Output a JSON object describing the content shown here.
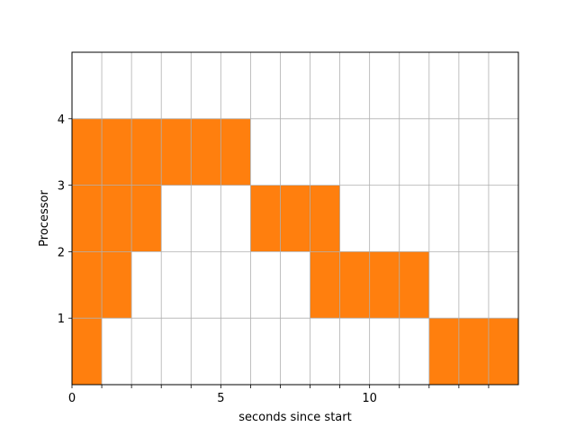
{
  "chart_data": {
    "type": "heatmap",
    "xlabel": "seconds since start",
    "ylabel": "Processor",
    "xlim": [
      0,
      15
    ],
    "ylim": [
      0,
      5
    ],
    "x_ticks": [
      0,
      1,
      2,
      3,
      4,
      5,
      6,
      7,
      8,
      9,
      10,
      11,
      12,
      13,
      14
    ],
    "x_tick_labels": [
      "0",
      "",
      "",
      "",
      "",
      "5",
      "",
      "",
      "",
      "",
      "10",
      "",
      "",
      "",
      ""
    ],
    "y_ticks": [
      1,
      2,
      3,
      4
    ],
    "y_tick_labels": [
      "1",
      "2",
      "3",
      "4"
    ],
    "grid": true,
    "fill_color": "#ff7f0e",
    "grid_color": "#b0b0b0",
    "cells": [
      {
        "x": 0,
        "y": 1
      },
      {
        "x": 0,
        "y": 2
      },
      {
        "x": 1,
        "y": 2
      },
      {
        "x": 0,
        "y": 3
      },
      {
        "x": 1,
        "y": 3
      },
      {
        "x": 2,
        "y": 3
      },
      {
        "x": 0,
        "y": 4
      },
      {
        "x": 1,
        "y": 4
      },
      {
        "x": 2,
        "y": 4
      },
      {
        "x": 3,
        "y": 4
      },
      {
        "x": 4,
        "y": 4
      },
      {
        "x": 5,
        "y": 4
      },
      {
        "x": 6,
        "y": 3
      },
      {
        "x": 7,
        "y": 3
      },
      {
        "x": 8,
        "y": 3
      },
      {
        "x": 8,
        "y": 2
      },
      {
        "x": 9,
        "y": 2
      },
      {
        "x": 10,
        "y": 2
      },
      {
        "x": 11,
        "y": 2
      },
      {
        "x": 12,
        "y": 1
      },
      {
        "x": 13,
        "y": 1
      },
      {
        "x": 14,
        "y": 1
      }
    ]
  }
}
